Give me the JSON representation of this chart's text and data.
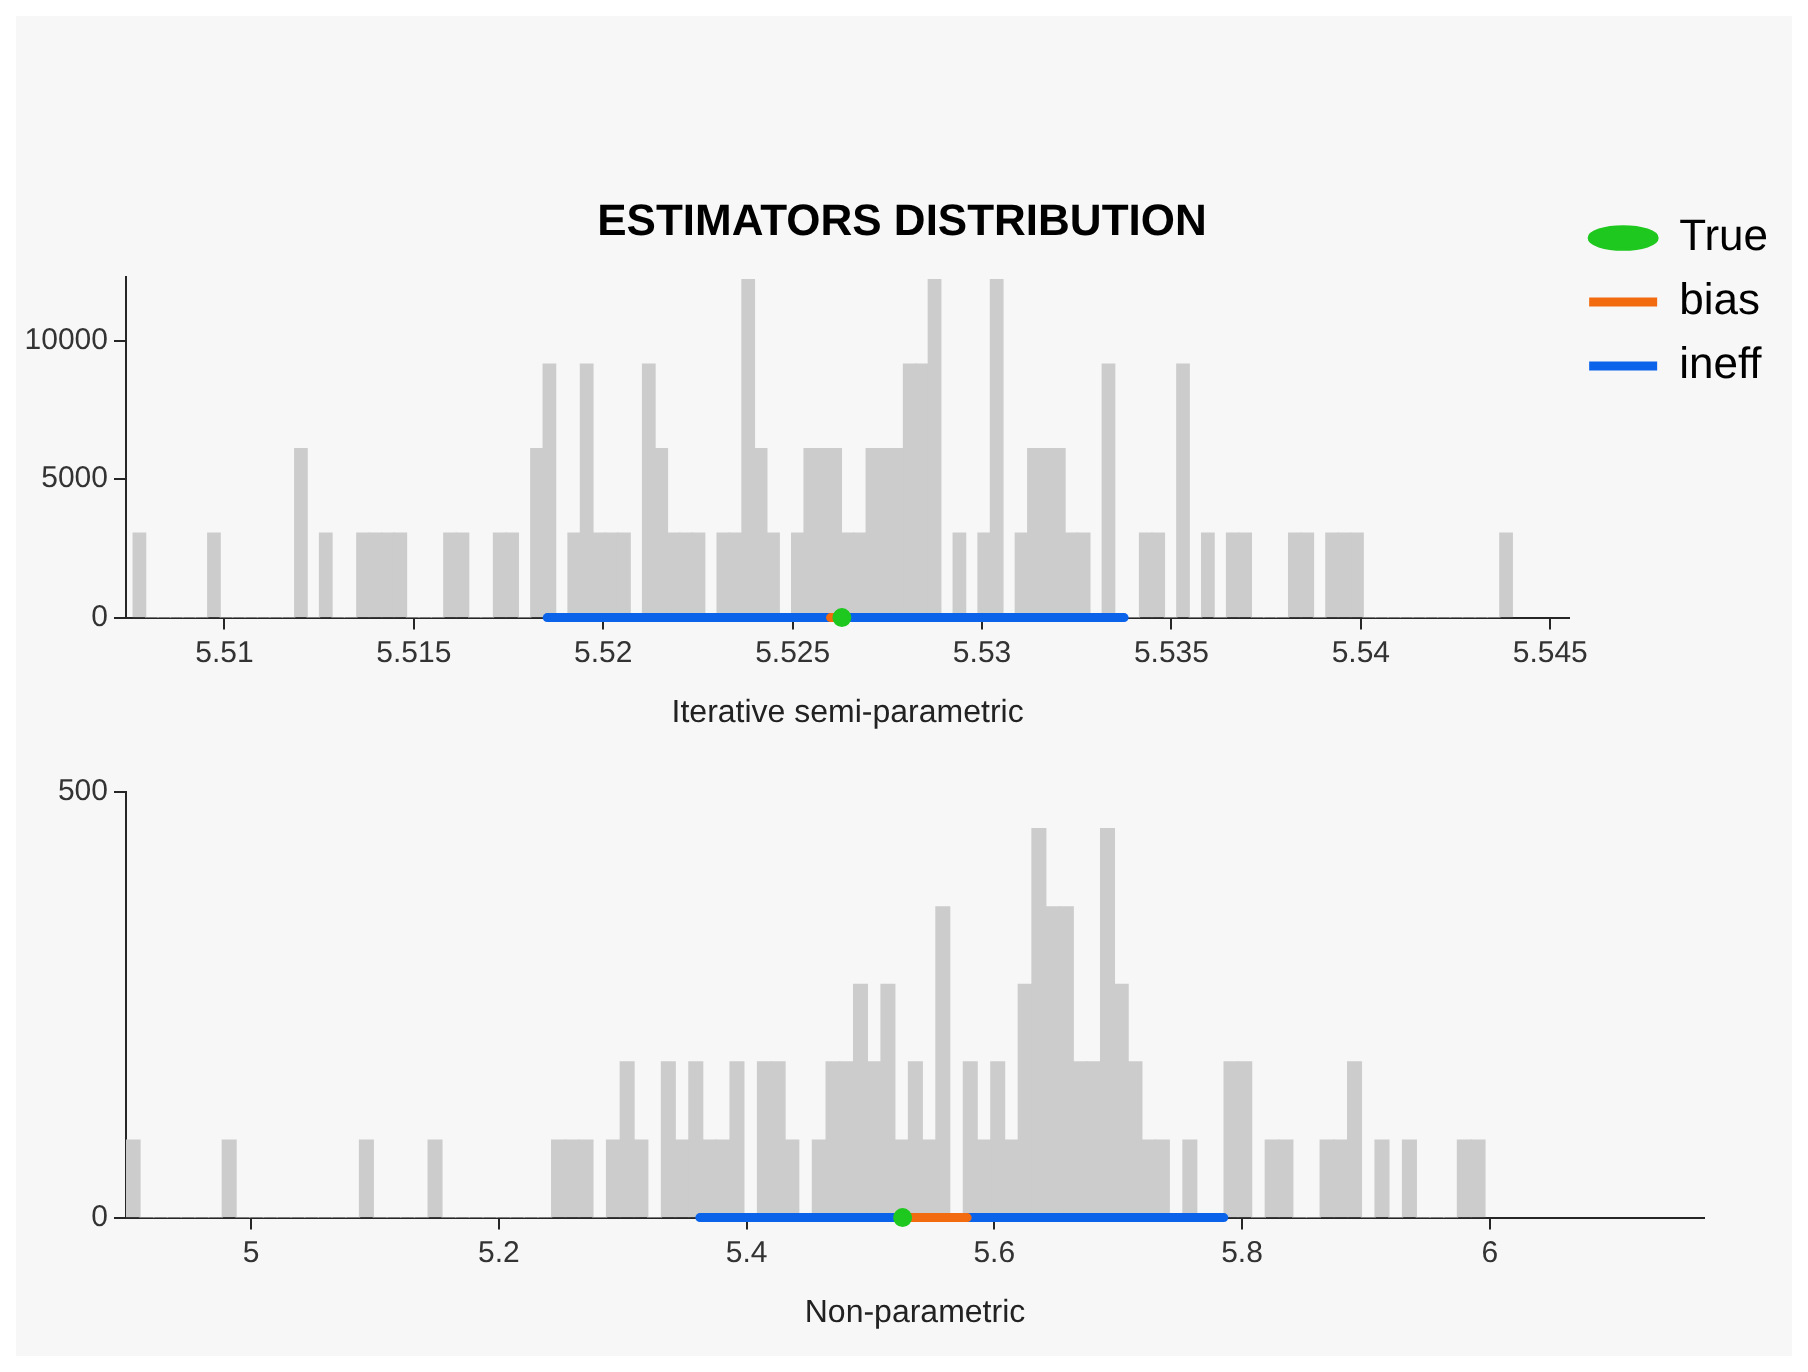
{
  "chart_data": [
    {
      "type": "histogram",
      "title": "ESTIMATORS DISTRIBUTION",
      "xlabel": "Iterative semi-parametric",
      "xlim": [
        5.5074,
        5.5455
      ],
      "xticks": [
        5.51,
        5.515,
        5.52,
        5.525,
        5.53,
        5.535,
        5.54,
        5.545
      ],
      "ylim": [
        0,
        12300
      ],
      "yticks": [
        0,
        5000,
        10000
      ],
      "legend": "top right",
      "series": [
        {
          "color": "#cccccc",
          "bins": [
            5.50759,
            5.507918,
            5.508246,
            5.508574,
            5.508902,
            5.50923,
            5.509558,
            5.509886,
            5.510214,
            5.510542,
            5.51087,
            5.511198,
            5.511526,
            5.511854,
            5.512182,
            5.51251,
            5.512838,
            5.513166,
            5.513494,
            5.513822,
            5.51415,
            5.514478,
            5.514806,
            5.515134,
            5.515462,
            5.51579,
            5.516118,
            5.516446,
            5.516774,
            5.517102,
            5.51743,
            5.517758,
            5.518086,
            5.518414,
            5.518742,
            5.51907,
            5.519398,
            5.519726,
            5.520054,
            5.520382,
            5.52071,
            5.521038,
            5.521366,
            5.521694,
            5.522022,
            5.52235,
            5.522678,
            5.523006,
            5.523334,
            5.523662,
            5.52399,
            5.524318,
            5.524646,
            5.524974,
            5.525302,
            5.52563,
            5.525958,
            5.526286,
            5.526614,
            5.526942,
            5.52727,
            5.527598,
            5.527926,
            5.528254,
            5.528582,
            5.52891,
            5.529238,
            5.529566,
            5.529894,
            5.530222,
            5.53055,
            5.530878,
            5.531206,
            5.531534,
            5.531862,
            5.53219,
            5.532518,
            5.532846,
            5.533174,
            5.533502,
            5.53383,
            5.534158,
            5.534486,
            5.534814,
            5.535142,
            5.53547,
            5.535798,
            5.536126,
            5.536454,
            5.536782,
            5.53711,
            5.537438,
            5.537766,
            5.538094,
            5.538422,
            5.53875,
            5.539078,
            5.539406,
            5.539734,
            5.540062,
            5.54039,
            5.540718,
            5.541046,
            5.541374,
            5.541702,
            5.54203,
            5.542358,
            5.542686,
            5.543014,
            5.543342,
            5.54367,
            5.543998
          ],
          "values": [
            3050,
            0,
            0,
            0,
            0,
            0,
            3050,
            0,
            0,
            0,
            0,
            0,
            0,
            6100,
            0,
            3050,
            0,
            0,
            3050,
            3050,
            3050,
            3050,
            0,
            0,
            0,
            3050,
            3050,
            0,
            0,
            3050,
            3050,
            0,
            6100,
            9150,
            0,
            3050,
            9150,
            3050,
            3050,
            3050,
            0,
            9150,
            6100,
            3050,
            3050,
            3050,
            0,
            3050,
            3050,
            12200,
            6100,
            3050,
            0,
            3050,
            6100,
            6100,
            6100,
            3050,
            3050,
            6100,
            6100,
            6100,
            9150,
            9150,
            12200,
            0,
            3050,
            0,
            3050,
            12200,
            0,
            3050,
            6100,
            6100,
            6100,
            3050,
            3050,
            0,
            9150,
            0,
            0,
            3050,
            3050,
            0,
            9150,
            0,
            3050,
            0,
            3050,
            3050,
            0,
            0,
            0,
            3050,
            3050,
            0,
            3050,
            3050,
            3050,
            0,
            0,
            0,
            0,
            0,
            0,
            0,
            0,
            0,
            0,
            0,
            3050
          ]
        },
        {
          "type": "line",
          "name": "bias",
          "color": "#f26b0f",
          "x": [
            5.526,
            5.5263
          ],
          "values": [
            0,
            0
          ]
        },
        {
          "type": "line",
          "name": "ineff",
          "color": "#0b63ea",
          "x": [
            5.51852,
            5.53375
          ],
          "values": [
            0,
            0
          ]
        },
        {
          "type": "line",
          "name": "True",
          "color": "#1ec81e",
          "marker": "circle",
          "x": [
            5.5263
          ],
          "values": [
            0
          ]
        }
      ]
    },
    {
      "type": "histogram",
      "xlabel": "Non-parametric",
      "xlim": [
        4.899,
        6.173
      ],
      "xticks": [
        5,
        5.2,
        5.4,
        5.6,
        5.8,
        6
      ],
      "ylim": [
        0,
        500
      ],
      "yticks": [
        0,
        500
      ],
      "series": [
        {
          "color": "#cccccc",
          "bins": [
            4.8992,
            4.91028,
            4.92136,
            4.93244,
            4.94352,
            4.9546,
            4.96568,
            4.97676,
            4.98784,
            4.99892,
            5.01,
            5.02108,
            5.03216,
            5.04324,
            5.05432,
            5.0654,
            5.07648,
            5.08756,
            5.09864,
            5.10972,
            5.1208,
            5.13188,
            5.14296,
            5.15404,
            5.16512,
            5.1762,
            5.18728,
            5.19836,
            5.20944,
            5.22052,
            5.2316,
            5.24268,
            5.25376,
            5.26484,
            5.27592,
            5.287,
            5.29808,
            5.30916,
            5.32024,
            5.33132,
            5.3424,
            5.35348,
            5.36456,
            5.37564,
            5.38672,
            5.3978,
            5.40888,
            5.41996,
            5.43104,
            5.44212,
            5.4532,
            5.46428,
            5.47536,
            5.48644,
            5.49752,
            5.5086,
            5.51968,
            5.53076,
            5.54184,
            5.55292,
            5.564,
            5.57508,
            5.58616,
            5.59724,
            5.60832,
            5.6194,
            5.63048,
            5.64156,
            5.65264,
            5.66372,
            5.6748,
            5.68588,
            5.69696,
            5.70804,
            5.71912,
            5.7302,
            5.74128,
            5.75236,
            5.76344,
            5.77452,
            5.7856,
            5.79668,
            5.80776,
            5.81884,
            5.82992,
            5.841,
            5.85208,
            5.86316,
            5.87424,
            5.88532,
            5.8964,
            5.90748,
            5.91856,
            5.92964,
            5.94072,
            5.9518,
            5.96288,
            5.97396,
            5.98504,
            5.99612
          ],
          "values": [
            91,
            0,
            0,
            0,
            0,
            0,
            0,
            91,
            0,
            0,
            0,
            0,
            0,
            0,
            0,
            0,
            0,
            91,
            0,
            0,
            0,
            0,
            91,
            0,
            0,
            0,
            0,
            0,
            0,
            0,
            0,
            91,
            91,
            91,
            0,
            91,
            183,
            91,
            0,
            183,
            91,
            183,
            91,
            91,
            183,
            0,
            183,
            183,
            91,
            0,
            91,
            183,
            183,
            274,
            183,
            274,
            91,
            183,
            91,
            365,
            0,
            183,
            91,
            183,
            91,
            274,
            457,
            365,
            365,
            183,
            183,
            457,
            274,
            183,
            91,
            91,
            0,
            91,
            0,
            0,
            183,
            183,
            0,
            91,
            91,
            0,
            0,
            91,
            91,
            183,
            0,
            91,
            0,
            91,
            0,
            0,
            0,
            91,
            91
          ]
        },
        {
          "type": "line",
          "color": "#f26b0f",
          "x": [
            5.5247,
            5.5781
          ],
          "values": [
            0,
            0
          ]
        },
        {
          "type": "line",
          "color": "#0b63ea",
          "x": [
            5.3623,
            5.7853
          ],
          "values": [
            0,
            0
          ]
        },
        {
          "type": "line",
          "color": "#1ec81e",
          "marker": "circle",
          "x": [
            5.526
          ],
          "values": [
            0
          ]
        }
      ]
    }
  ]
}
